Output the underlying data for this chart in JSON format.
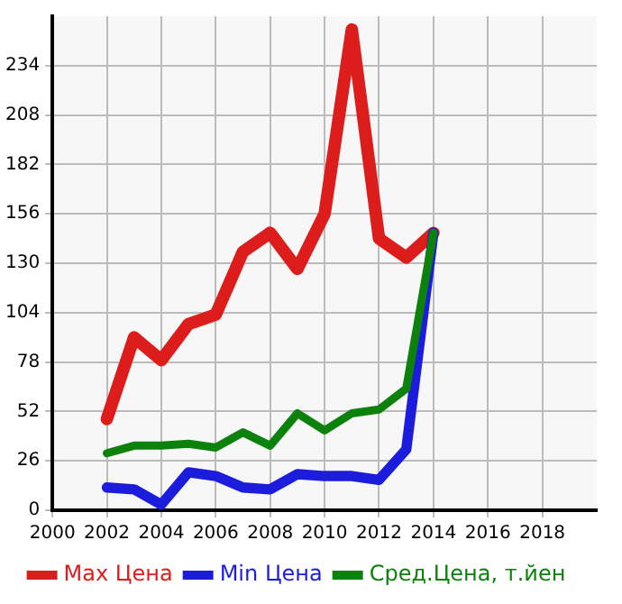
{
  "chart_data": {
    "type": "line",
    "x": [
      2002,
      2003,
      2004,
      2005,
      2006,
      2007,
      2008,
      2009,
      2010,
      2011,
      2012,
      2013,
      2014
    ],
    "series": [
      {
        "name": "Max Цена",
        "color": "#dd1c1c",
        "values": [
          48,
          91,
          79,
          98,
          103,
          136,
          146,
          127,
          156,
          253,
          143,
          133,
          146
        ]
      },
      {
        "name": "Min Цена",
        "color": "#1c1cdd",
        "values": [
          12,
          11,
          3,
          20,
          18,
          12,
          11,
          19,
          18,
          18,
          16,
          32,
          146
        ]
      },
      {
        "name": "Сред.Цена, т.йен",
        "color": "#0c820c",
        "values": [
          30,
          34,
          34,
          35,
          33,
          41,
          34,
          51,
          42,
          51,
          53,
          64,
          146
        ]
      }
    ],
    "xlim": [
      2000,
      2020
    ],
    "xticks": [
      2000,
      2002,
      2004,
      2006,
      2008,
      2010,
      2012,
      2014,
      2016,
      2018
    ],
    "ylim": [
      0,
      260
    ],
    "yticks": [
      0,
      26,
      52,
      78,
      104,
      130,
      156,
      182,
      208,
      234
    ],
    "grid": true,
    "legend": "bottom",
    "marker": "none",
    "line_style": "solid"
  }
}
